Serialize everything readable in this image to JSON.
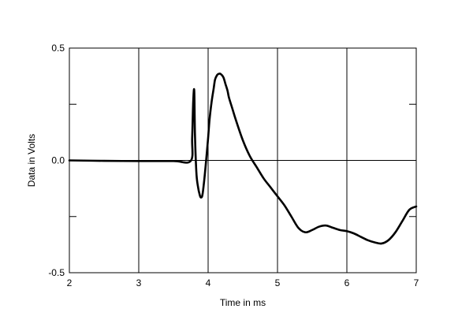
{
  "chart_data": {
    "type": "line",
    "title": "",
    "xlabel": "Time in ms",
    "ylabel": "Data in Volts",
    "xlim": [
      2,
      7
    ],
    "ylim": [
      -0.5,
      0.5
    ],
    "x_ticks": [
      2,
      3,
      4,
      5,
      6,
      7
    ],
    "x_tick_labels": [
      "2",
      "3",
      "4",
      "5",
      "6",
      "7"
    ],
    "y_ticks": [
      -0.5,
      -0.25,
      0.0,
      0.25,
      0.5
    ],
    "y_tick_labels": [
      "-0.5",
      "",
      "0.0",
      "",
      "0.5"
    ],
    "grid": true,
    "legend": "none",
    "line_color": "#000000",
    "series": [
      {
        "x": [
          2.0,
          2.5,
          3.0,
          3.5,
          3.75,
          3.77,
          3.785,
          3.8,
          3.81,
          3.83,
          3.85,
          3.88,
          3.9,
          3.92,
          3.95,
          3.98,
          4.0,
          4.02,
          4.05,
          4.08,
          4.1,
          4.13,
          4.15,
          4.18,
          4.22,
          4.25,
          4.28,
          4.3,
          4.35,
          4.4,
          4.5,
          4.6,
          4.7,
          4.8,
          4.9,
          5.0,
          5.1,
          5.2,
          5.3,
          5.4,
          5.5,
          5.6,
          5.7,
          5.8,
          5.9,
          6.0,
          6.1,
          6.2,
          6.3,
          6.4,
          6.5,
          6.6,
          6.7,
          6.8,
          6.9,
          7.0
        ],
        "y": [
          0.0,
          -0.002,
          -0.003,
          -0.003,
          -0.002,
          0.1,
          0.26,
          0.31,
          0.12,
          -0.05,
          -0.11,
          -0.155,
          -0.165,
          -0.15,
          -0.07,
          0.03,
          0.1,
          0.18,
          0.26,
          0.32,
          0.36,
          0.38,
          0.385,
          0.385,
          0.37,
          0.34,
          0.31,
          0.28,
          0.23,
          0.18,
          0.09,
          0.02,
          -0.03,
          -0.08,
          -0.12,
          -0.16,
          -0.2,
          -0.25,
          -0.3,
          -0.32,
          -0.31,
          -0.295,
          -0.29,
          -0.3,
          -0.31,
          -0.315,
          -0.325,
          -0.34,
          -0.355,
          -0.365,
          -0.37,
          -0.355,
          -0.32,
          -0.27,
          -0.22,
          -0.205
        ]
      }
    ]
  }
}
